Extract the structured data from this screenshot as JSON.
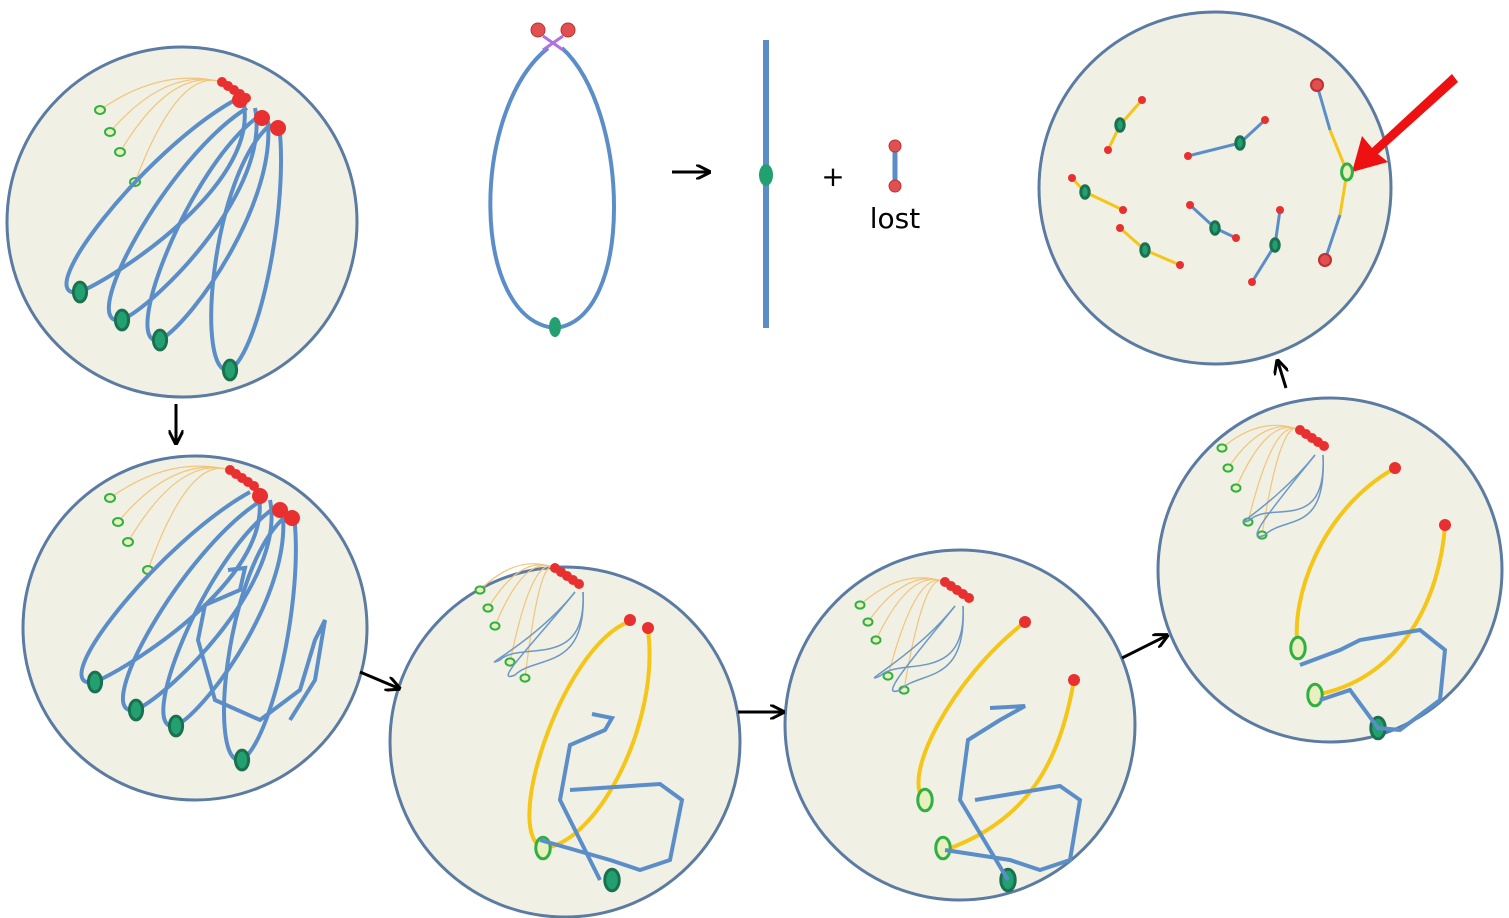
{
  "equation": {
    "operator": "+",
    "label": "lost"
  }
}
